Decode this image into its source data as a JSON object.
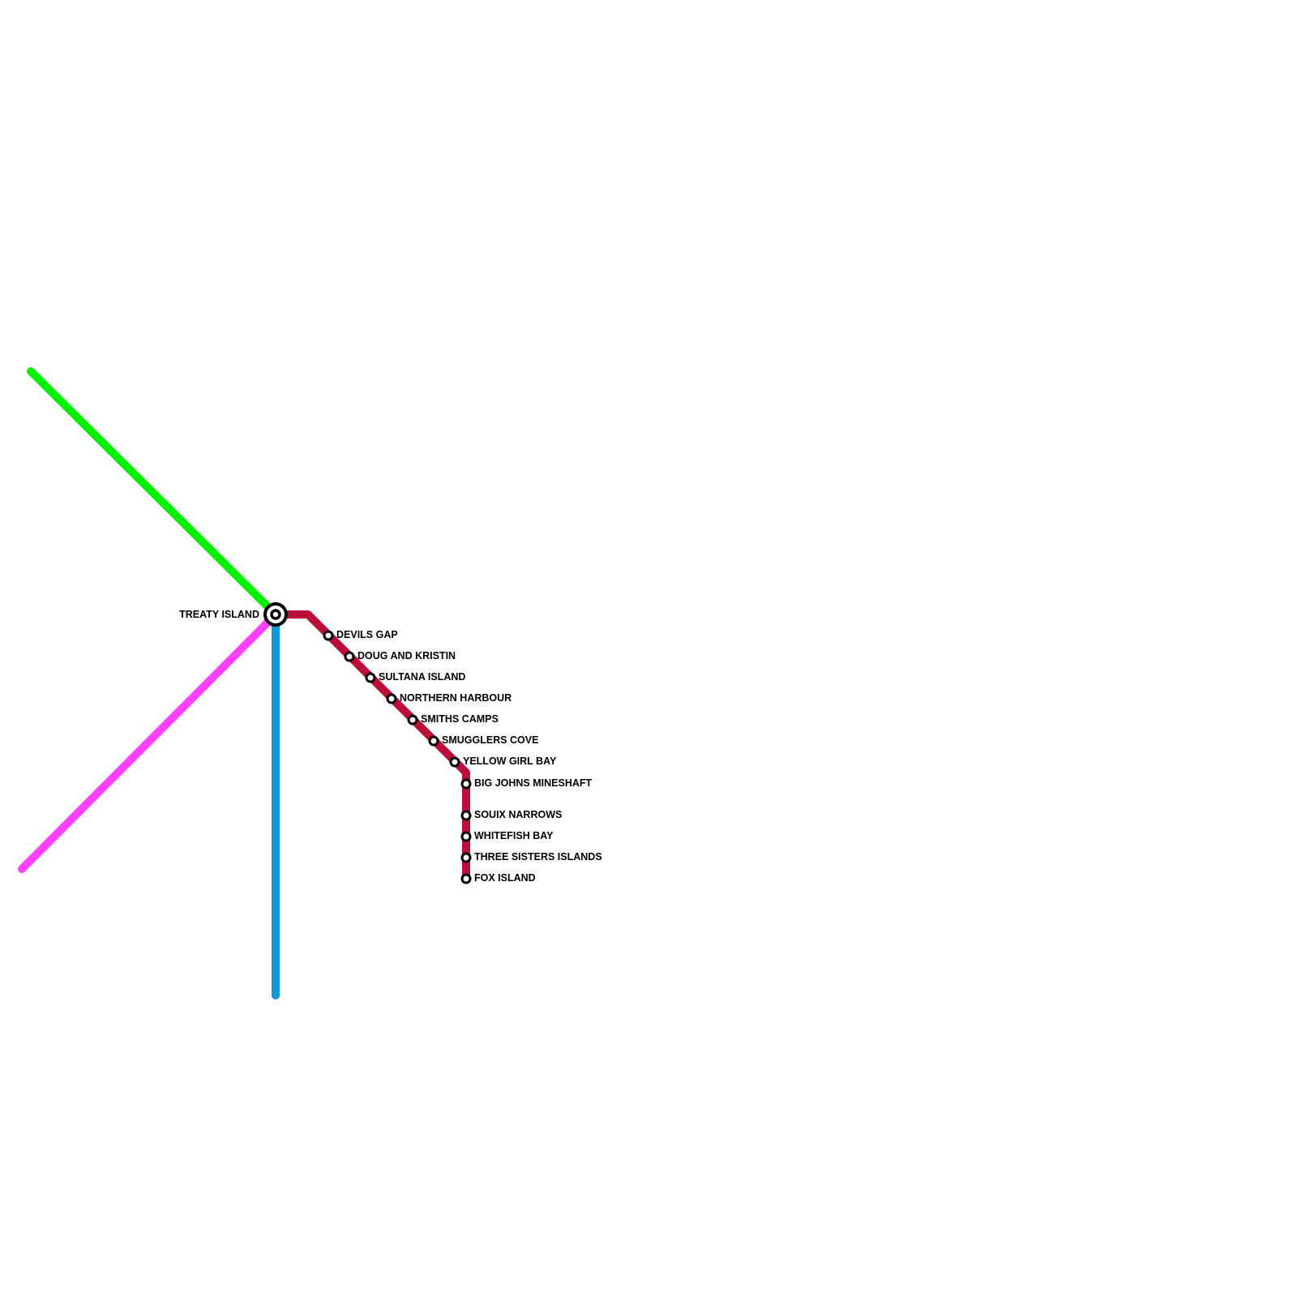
{
  "lines": [
    {
      "id": "green",
      "color": "#00f000"
    },
    {
      "id": "magenta",
      "color": "#ff40ff"
    },
    {
      "id": "blue",
      "color": "#0e98d6"
    },
    {
      "id": "red",
      "color": "#bb0f3a"
    }
  ],
  "interchange": {
    "name": "TREATY ISLAND"
  },
  "stations": [
    "DEVILS GAP",
    "DOUG AND KRISTIN",
    "SULTANA ISLAND",
    "NORTHERN HARBOUR",
    "SMITHS CAMPS",
    "SMUGGLERS COVE",
    "YELLOW GIRL BAY",
    "BIG JOHNS MINESHAFT",
    "SOUIX NARROWS",
    "WHITEFISH BAY",
    "THREE SISTERS ISLANDS",
    "FOX ISLAND"
  ]
}
